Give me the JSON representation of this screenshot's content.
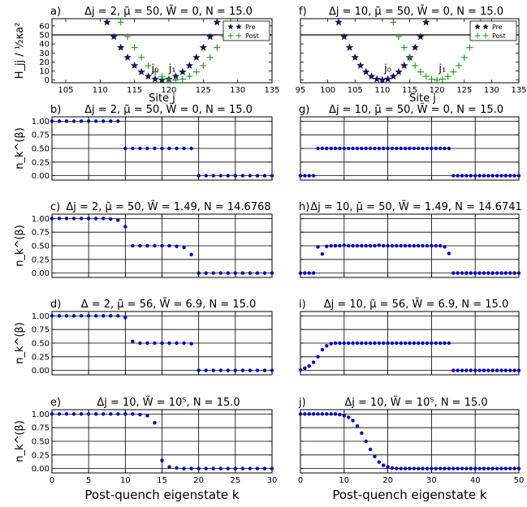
{
  "chart_data": [
    {
      "panel": "a)",
      "title": "Δj = 2, μ̃ = 50, W̃ = 0, N = 15.0",
      "type": "scatter",
      "xlabel": "Site j",
      "ylabel": "H_jj / ½κa²",
      "xlim": [
        103,
        135
      ],
      "ylim": [
        -3,
        68
      ],
      "xticks": [
        105,
        110,
        115,
        120,
        125,
        130,
        135
      ],
      "yticks": [
        0,
        10,
        20,
        30,
        40,
        50,
        60
      ],
      "hline": 50,
      "legend": [
        "Pre",
        "Post"
      ],
      "annotations": [
        {
          "text": "j₀",
          "x": 118,
          "y": 9
        },
        {
          "text": "j₁",
          "x": 120.5,
          "y": 9
        }
      ],
      "series": [
        {
          "name": "Pre",
          "marker": "star",
          "color": "#1a1a50",
          "x": [
            111,
            112,
            113,
            114,
            115,
            116,
            117,
            118,
            119,
            120,
            121,
            122,
            123,
            124,
            125,
            126,
            127
          ],
          "y": [
            64,
            48,
            36,
            25,
            16,
            9,
            4,
            1,
            0,
            1,
            4,
            9,
            16,
            25,
            36,
            48,
            64
          ]
        },
        {
          "name": "Post",
          "marker": "plus",
          "color": "#2ca02c",
          "x": [
            113,
            114,
            115,
            116,
            117,
            118,
            119,
            120,
            121,
            122,
            123,
            124,
            125,
            126,
            127,
            128,
            129
          ],
          "y": [
            64,
            48,
            36,
            25,
            16,
            9,
            4,
            1,
            0,
            1,
            4,
            9,
            16,
            25,
            36,
            48,
            64
          ]
        }
      ]
    },
    {
      "panel": "f)",
      "title": "Δj = 10, μ̃ = 50, W̃ = 0, N = 15.0",
      "type": "scatter",
      "xlabel": "Site j",
      "ylabel": "",
      "xlim": [
        95,
        135
      ],
      "ylim": [
        -3,
        68
      ],
      "xticks": [
        95,
        100,
        105,
        110,
        115,
        120,
        125,
        130,
        135
      ],
      "yticks": [
        0,
        10,
        20,
        30,
        40,
        50,
        60
      ],
      "hline": 50,
      "legend": [
        "Pre",
        "Post"
      ],
      "annotations": [
        {
          "text": "j₀",
          "x": 111,
          "y": 9
        },
        {
          "text": "j₁",
          "x": 121,
          "y": 9
        }
      ],
      "series": [
        {
          "name": "Pre",
          "marker": "star",
          "color": "#1a1a50",
          "x": [
            102,
            103,
            104,
            105,
            106,
            107,
            108,
            109,
            110,
            111,
            112,
            113,
            114,
            115,
            116,
            117,
            118
          ],
          "y": [
            64,
            48,
            36,
            25,
            16,
            9,
            4,
            1,
            0,
            1,
            4,
            9,
            16,
            25,
            36,
            48,
            64
          ]
        },
        {
          "name": "Post",
          "marker": "plus",
          "color": "#2ca02c",
          "x": [
            112,
            113,
            114,
            115,
            116,
            117,
            118,
            119,
            120,
            121,
            122,
            123,
            124,
            125,
            126,
            127,
            128
          ],
          "y": [
            64,
            48,
            36,
            25,
            16,
            9,
            4,
            1,
            0,
            1,
            4,
            9,
            16,
            25,
            36,
            48,
            64
          ]
        }
      ]
    },
    {
      "panel": "b)",
      "title": "Δj = 2, μ̃ = 50, W̃ = 0, N = 15.0",
      "type": "scatter",
      "ylabel": "n_k^(β)",
      "xlim": [
        0,
        30
      ],
      "ylim": [
        -0.08,
        1.08
      ],
      "xticks": [
        0,
        5,
        10,
        15,
        20,
        25,
        30
      ],
      "yticks": [
        0.0,
        0.25,
        0.5,
        0.75,
        1.0
      ],
      "series": [
        {
          "name": "",
          "color": "#0000cc",
          "x": [
            0,
            1,
            2,
            3,
            4,
            5,
            6,
            7,
            8,
            9,
            10,
            11,
            12,
            13,
            14,
            15,
            16,
            17,
            18,
            19,
            20,
            21,
            22,
            23,
            24,
            25,
            26,
            27,
            28,
            29,
            30
          ],
          "y": [
            1,
            1,
            1,
            1,
            1,
            1,
            1,
            1,
            1,
            1,
            0.5,
            0.5,
            0.5,
            0.5,
            0.5,
            0.5,
            0.5,
            0.5,
            0.5,
            0.5,
            0,
            0,
            0,
            0,
            0,
            0,
            0,
            0,
            0,
            0,
            0
          ]
        }
      ]
    },
    {
      "panel": "g)",
      "title": "Δj = 10, μ̃ = 50, W̃ = 0, N = 15.0",
      "type": "scatter",
      "ylabel": "",
      "xlim": [
        0,
        50
      ],
      "ylim": [
        -0.08,
        1.08
      ],
      "xticks": [
        0,
        10,
        20,
        30,
        40,
        50
      ],
      "yticks": [
        0.0,
        0.25,
        0.5,
        0.75,
        1.0
      ],
      "series": [
        {
          "name": "",
          "color": "#0000cc",
          "x": [
            0,
            1,
            2,
            3,
            4,
            5,
            6,
            7,
            8,
            9,
            10,
            11,
            12,
            13,
            14,
            15,
            16,
            17,
            18,
            19,
            20,
            21,
            22,
            23,
            24,
            25,
            26,
            27,
            28,
            29,
            30,
            31,
            32,
            33,
            34,
            35,
            36,
            37,
            38,
            39,
            40,
            41,
            42,
            43,
            44,
            45,
            46,
            47,
            48,
            49,
            50
          ],
          "y": [
            0,
            0,
            0,
            0,
            0.5,
            0.5,
            0.5,
            0.5,
            0.5,
            0.5,
            0.5,
            0.5,
            0.5,
            0.5,
            0.5,
            0.5,
            0.5,
            0.5,
            0.5,
            0.5,
            0.5,
            0.5,
            0.5,
            0.5,
            0.5,
            0.5,
            0.5,
            0.5,
            0.5,
            0.5,
            0.5,
            0.5,
            0.5,
            0.5,
            0.5,
            0,
            0,
            0,
            0,
            0,
            0,
            0,
            0,
            0,
            0,
            0,
            0,
            0,
            0,
            0,
            0
          ]
        }
      ]
    },
    {
      "panel": "c)",
      "title": "Δj = 2, μ̃ = 50, W̃ = 1.49, N = 14.6768",
      "type": "scatter",
      "ylabel": "n_k^(β)",
      "xlim": [
        0,
        30
      ],
      "ylim": [
        -0.08,
        1.08
      ],
      "xticks": [
        0,
        5,
        10,
        15,
        20,
        25,
        30
      ],
      "yticks": [
        0.0,
        0.25,
        0.5,
        0.75,
        1.0
      ],
      "series": [
        {
          "name": "",
          "color": "#0000cc",
          "x": [
            0,
            1,
            2,
            3,
            4,
            5,
            6,
            7,
            8,
            9,
            10,
            11,
            12,
            13,
            14,
            15,
            16,
            17,
            18,
            19,
            20,
            21,
            22,
            23,
            24,
            25,
            26,
            27,
            28,
            29,
            30
          ],
          "y": [
            1,
            1,
            1,
            1,
            1,
            1,
            1,
            1,
            0.99,
            0.97,
            0.85,
            0.5,
            0.5,
            0.5,
            0.5,
            0.5,
            0.5,
            0.49,
            0.47,
            0.34,
            0,
            0,
            0,
            0,
            0,
            0,
            0,
            0,
            0,
            0,
            0
          ]
        }
      ]
    },
    {
      "panel": "h)",
      "title": "Δj = 10, μ̃ = 50, W̃ = 1.49, N = 14.6741",
      "type": "scatter",
      "ylabel": "",
      "xlim": [
        0,
        50
      ],
      "ylim": [
        -0.08,
        1.08
      ],
      "xticks": [
        0,
        10,
        20,
        30,
        40,
        50
      ],
      "yticks": [
        0.0,
        0.25,
        0.5,
        0.75,
        1.0
      ],
      "series": [
        {
          "name": "",
          "color": "#0000cc",
          "x": [
            0,
            1,
            2,
            3,
            4,
            5,
            6,
            7,
            8,
            9,
            10,
            11,
            12,
            13,
            14,
            15,
            16,
            17,
            18,
            19,
            20,
            21,
            22,
            23,
            24,
            25,
            26,
            27,
            28,
            29,
            30,
            31,
            32,
            33,
            34,
            35,
            36,
            37,
            38,
            39,
            40,
            41,
            42,
            43,
            44,
            45,
            46,
            47,
            48,
            49,
            50
          ],
          "y": [
            0,
            0,
            0,
            0,
            0.48,
            0.35,
            0.49,
            0.5,
            0.5,
            0.5,
            0.51,
            0.5,
            0.5,
            0.5,
            0.5,
            0.5,
            0.5,
            0.5,
            0.51,
            0.5,
            0.5,
            0.5,
            0.5,
            0.5,
            0.5,
            0.5,
            0.5,
            0.5,
            0.5,
            0.5,
            0.5,
            0.5,
            0.5,
            0.48,
            0.36,
            0,
            0,
            0,
            0,
            0,
            0,
            0,
            0,
            0,
            0,
            0,
            0,
            0,
            0,
            0,
            0
          ]
        }
      ]
    },
    {
      "panel": "d)",
      "title": "Δ = 2, μ̃ = 56, W̃ = 6.9, N = 15.0",
      "type": "scatter",
      "ylabel": "n_k^(β)",
      "xlim": [
        0,
        30
      ],
      "ylim": [
        -0.08,
        1.08
      ],
      "xticks": [
        0,
        5,
        10,
        15,
        20,
        25,
        30
      ],
      "yticks": [
        0.0,
        0.25,
        0.5,
        0.75,
        1.0
      ],
      "series": [
        {
          "name": "",
          "color": "#0000cc",
          "x": [
            0,
            1,
            2,
            3,
            4,
            5,
            6,
            7,
            8,
            9,
            10,
            11,
            12,
            13,
            14,
            15,
            16,
            17,
            18,
            19,
            20,
            21,
            22,
            23,
            24,
            25,
            26,
            27,
            28,
            29,
            30
          ],
          "y": [
            1,
            1,
            1,
            1,
            1,
            1,
            1,
            1,
            1,
            1,
            0.97,
            0.53,
            0.5,
            0.5,
            0.5,
            0.5,
            0.5,
            0.5,
            0.5,
            0.49,
            0,
            0,
            0,
            0,
            0,
            0,
            0,
            0,
            0,
            0,
            0
          ]
        }
      ]
    },
    {
      "panel": "i)",
      "title": "Δj = 10, μ̃ = 56, W̃ = 6.9, N = 15.0",
      "type": "scatter",
      "ylabel": "",
      "xlim": [
        0,
        50
      ],
      "ylim": [
        -0.08,
        1.08
      ],
      "xticks": [
        0,
        10,
        20,
        30,
        40,
        50
      ],
      "yticks": [
        0.0,
        0.25,
        0.5,
        0.75,
        1.0
      ],
      "series": [
        {
          "name": "",
          "color": "#0000cc",
          "x": [
            0,
            1,
            2,
            3,
            4,
            5,
            6,
            7,
            8,
            9,
            10,
            11,
            12,
            13,
            14,
            15,
            16,
            17,
            18,
            19,
            20,
            21,
            22,
            23,
            24,
            25,
            26,
            27,
            28,
            29,
            30,
            31,
            32,
            33,
            34,
            35,
            36,
            37,
            38,
            39,
            40,
            41,
            42,
            43,
            44,
            45,
            46,
            47,
            48,
            49,
            50
          ],
          "y": [
            0.01,
            0.04,
            0.08,
            0.15,
            0.25,
            0.38,
            0.45,
            0.49,
            0.5,
            0.5,
            0.5,
            0.5,
            0.5,
            0.5,
            0.5,
            0.5,
            0.5,
            0.5,
            0.5,
            0.5,
            0.5,
            0.5,
            0.5,
            0.5,
            0.5,
            0.5,
            0.5,
            0.5,
            0.5,
            0.5,
            0.5,
            0.5,
            0.5,
            0.5,
            0.5,
            0,
            0,
            0,
            0,
            0,
            0,
            0,
            0,
            0,
            0,
            0,
            0,
            0,
            0,
            0,
            0
          ]
        }
      ]
    },
    {
      "panel": "e)",
      "title": "Δj = 10, W̃ = 10⁵, N = 15.0",
      "type": "scatter",
      "ylabel": "n_k^(β)",
      "xlabel": "Post-quench eigenstate k",
      "xlim": [
        0,
        30
      ],
      "ylim": [
        -0.08,
        1.08
      ],
      "xticks": [
        0,
        5,
        10,
        15,
        20,
        25,
        30
      ],
      "yticks": [
        0.0,
        0.25,
        0.5,
        0.75,
        1.0
      ],
      "series": [
        {
          "name": "",
          "color": "#0000cc",
          "x": [
            0,
            1,
            2,
            3,
            4,
            5,
            6,
            7,
            8,
            9,
            10,
            11,
            12,
            13,
            14,
            15,
            16,
            17,
            18,
            19,
            20,
            21,
            22,
            23,
            24,
            25,
            26,
            27,
            28,
            29,
            30
          ],
          "y": [
            1,
            1,
            1,
            1,
            1,
            1,
            1,
            1,
            1,
            1,
            1,
            1,
            0.99,
            0.97,
            0.84,
            0.15,
            0.03,
            0.01,
            0,
            0,
            0,
            0,
            0,
            0,
            0,
            0,
            0,
            0,
            0,
            0,
            0
          ]
        }
      ]
    },
    {
      "panel": "j)",
      "title": "Δj = 10, W̃ = 10⁵, N = 15.0",
      "type": "scatter",
      "ylabel": "",
      "xlabel": "Post-quench eigenstate k",
      "xlim": [
        0,
        50
      ],
      "ylim": [
        -0.08,
        1.08
      ],
      "xticks": [
        0,
        10,
        20,
        30,
        40,
        50
      ],
      "yticks": [
        0.0,
        0.25,
        0.5,
        0.75,
        1.0
      ],
      "series": [
        {
          "name": "",
          "color": "#0000cc",
          "x": [
            0,
            1,
            2,
            3,
            4,
            5,
            6,
            7,
            8,
            9,
            10,
            11,
            12,
            13,
            14,
            15,
            16,
            17,
            18,
            19,
            20,
            21,
            22,
            23,
            24,
            25,
            26,
            27,
            28,
            29,
            30,
            31,
            32,
            33,
            34,
            35,
            36,
            37,
            38,
            39,
            40,
            41,
            42,
            43,
            44,
            45,
            46,
            47,
            48,
            49,
            50
          ],
          "y": [
            1,
            1,
            1,
            1,
            1,
            1,
            1,
            1,
            1,
            0.99,
            0.97,
            0.94,
            0.88,
            0.78,
            0.65,
            0.5,
            0.35,
            0.22,
            0.12,
            0.06,
            0.03,
            0.01,
            0,
            0,
            0,
            0,
            0,
            0,
            0,
            0,
            0,
            0,
            0,
            0,
            0,
            0,
            0,
            0,
            0,
            0,
            0,
            0,
            0,
            0,
            0,
            0,
            0,
            0,
            0,
            0,
            0
          ]
        }
      ]
    }
  ]
}
